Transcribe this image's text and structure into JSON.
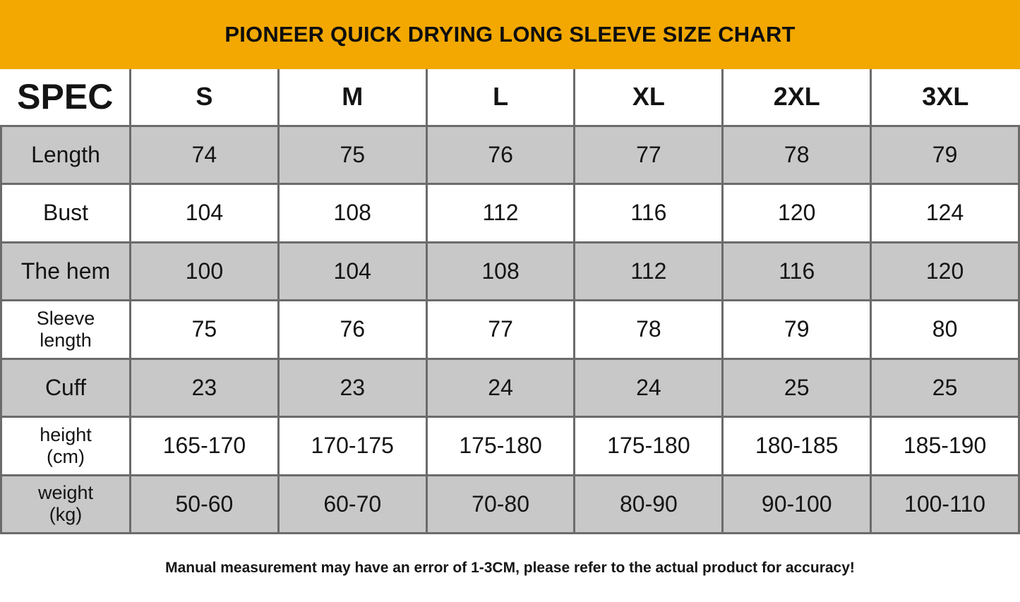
{
  "banner": {
    "title": "PIONEER QUICK DRYING LONG SLEEVE SIZE CHART"
  },
  "colors": {
    "banner_background": "#F2A800",
    "stripe_row": "#C8C8C8",
    "cell_border": "#6B6B6B",
    "text": "#141414"
  },
  "table": {
    "corner_label": "SPEC",
    "columns": [
      "S",
      "M",
      "L",
      "XL",
      "2XL",
      "3XL"
    ],
    "rows": [
      {
        "label": "Length",
        "label_lines": [
          "Length"
        ],
        "values": [
          "74",
          "75",
          "76",
          "77",
          "78",
          "79"
        ]
      },
      {
        "label": "Bust",
        "label_lines": [
          "Bust"
        ],
        "values": [
          "104",
          "108",
          "112",
          "116",
          "120",
          "124"
        ]
      },
      {
        "label": "The hem",
        "label_lines": [
          "The hem"
        ],
        "values": [
          "100",
          "104",
          "108",
          "112",
          "116",
          "120"
        ]
      },
      {
        "label": "Sleeve length",
        "label_lines": [
          "Sleeve",
          "length"
        ],
        "values": [
          "75",
          "76",
          "77",
          "78",
          "79",
          "80"
        ]
      },
      {
        "label": "Cuff",
        "label_lines": [
          "Cuff"
        ],
        "values": [
          "23",
          "23",
          "24",
          "24",
          "25",
          "25"
        ]
      },
      {
        "label": "height (cm)",
        "label_lines": [
          "height",
          "(cm)"
        ],
        "values": [
          "165-170",
          "170-175",
          "175-180",
          "175-180",
          "180-185",
          "185-190"
        ]
      },
      {
        "label": "weight (kg)",
        "label_lines": [
          "weight",
          "(kg)"
        ],
        "values": [
          "50-60",
          "60-70",
          "70-80",
          "80-90",
          "90-100",
          "100-110"
        ]
      }
    ]
  },
  "footer": {
    "note": "Manual measurement may have an error of 1-3CM, please refer to the actual product for accuracy!"
  }
}
